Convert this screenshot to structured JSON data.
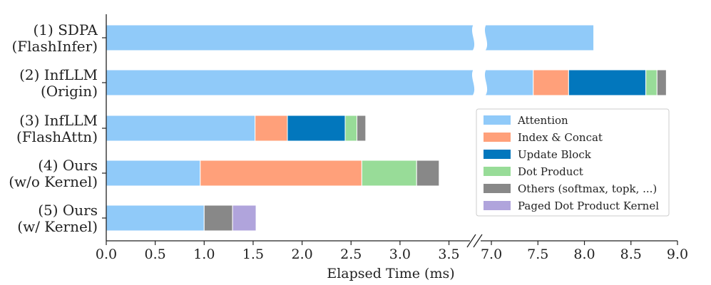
{
  "chart_data": {
    "type": "bar",
    "orientation": "horizontal",
    "stacked": true,
    "broken_x_axis": true,
    "xlabel": "Elapsed Time (ms)",
    "x_segments": [
      {
        "range": [
          0.0,
          3.7
        ],
        "ticks": [
          "0.0",
          "0.5",
          "1.0",
          "1.5",
          "2.0",
          "2.5",
          "3.0",
          "3.5"
        ]
      },
      {
        "range": [
          6.9,
          9.0
        ],
        "ticks": [
          "7.0",
          "7.5",
          "8.0",
          "8.5",
          "9.0"
        ]
      }
    ],
    "categories": [
      [
        "(1) SDPA",
        "(FlashInfer)"
      ],
      [
        "(2) InfLLM",
        "(Origin)"
      ],
      [
        "(3) InfLLM",
        "(FlashAttn)"
      ],
      [
        "(4) Ours",
        "(w/o Kernel)"
      ],
      [
        "(5) Ours",
        "(w/ Kernel)"
      ]
    ],
    "series": [
      {
        "name": "Attention",
        "color": "#90caf9",
        "values": [
          8.1,
          7.45,
          1.52,
          0.96,
          1.0
        ]
      },
      {
        "name": "Index & Concat",
        "color": "#ffa07a",
        "values": [
          0,
          0.38,
          0.33,
          1.65,
          0
        ]
      },
      {
        "name": "Update Block",
        "color": "#0277bd",
        "values": [
          0,
          0.83,
          0.59,
          0,
          0
        ]
      },
      {
        "name": "Dot Product",
        "color": "#98dc98",
        "values": [
          0,
          0.12,
          0.12,
          0.56,
          0
        ]
      },
      {
        "name": "Others (softmax, topk, ...)",
        "color": "#888888",
        "values": [
          0,
          0.1,
          0.09,
          0.23,
          0.29
        ]
      },
      {
        "name": "Paged Dot Product Kernel",
        "color": "#b0a4dc",
        "values": [
          0,
          0,
          0,
          0,
          0.24
        ]
      }
    ],
    "grid": false,
    "legend_position": "right"
  }
}
